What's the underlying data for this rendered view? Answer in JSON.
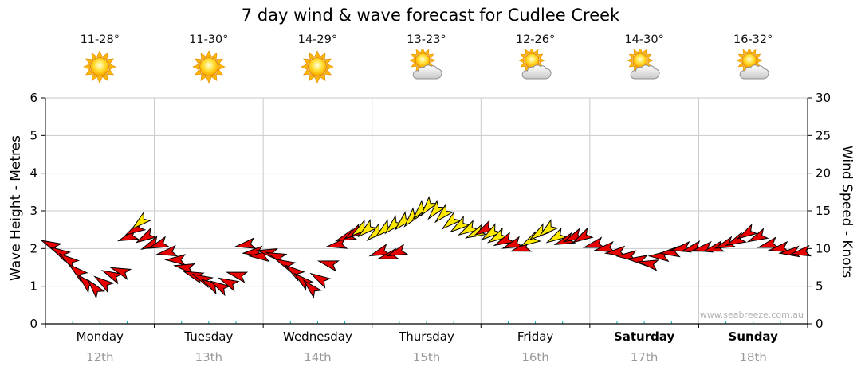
{
  "title": "7 day wind & wave forecast for Cudlee Creek",
  "watermark": "www.seabreeze.com.au",
  "chart_data": {
    "type": "wind-arrow-timeseries",
    "title": "7 day wind & wave forecast for Cudlee Creek",
    "left_axis": {
      "label": "Wave Height - Metres",
      "min": 0,
      "max": 6,
      "step": 1
    },
    "right_axis": {
      "label": "Wind Speed - Knots",
      "min": 0,
      "max": 30,
      "step": 5
    },
    "colors": {
      "red": "#e60000",
      "yellow": "#ffe800",
      "grid": "#c9c9c9",
      "axis": "#000000",
      "minor_tick": "#00b2b2"
    },
    "days": [
      {
        "name": "Monday",
        "date": "12th",
        "temp": "11-28°",
        "icon": "sunny",
        "bold": false
      },
      {
        "name": "Tuesday",
        "date": "13th",
        "temp": "11-30°",
        "icon": "sunny",
        "bold": false
      },
      {
        "name": "Wednesday",
        "date": "14th",
        "temp": "14-29°",
        "icon": "sunny",
        "bold": false
      },
      {
        "name": "Thursday",
        "date": "15th",
        "temp": "13-23°",
        "icon": "partly-cloudy",
        "bold": false
      },
      {
        "name": "Friday",
        "date": "16th",
        "temp": "12-26°",
        "icon": "partly-cloudy",
        "bold": false
      },
      {
        "name": "Saturday",
        "date": "17th",
        "temp": "14-30°",
        "icon": "partly-cloudy",
        "bold": true
      },
      {
        "name": "Sunday",
        "date": "18th",
        "temp": "16-32°",
        "icon": "partly-cloudy",
        "bold": true
      }
    ],
    "points_format": [
      "day_fraction",
      "wind_speed_knots",
      "arrow_rotation_deg",
      "color(r=red,y=yellow)"
    ],
    "points": [
      [
        0.05,
        10.5,
        205,
        "r"
      ],
      [
        0.13,
        9.5,
        210,
        "r"
      ],
      [
        0.21,
        8.5,
        215,
        "r"
      ],
      [
        0.29,
        7,
        220,
        "r"
      ],
      [
        0.37,
        5.5,
        225,
        "r"
      ],
      [
        0.45,
        4.8,
        230,
        "r"
      ],
      [
        0.53,
        5.5,
        215,
        "r"
      ],
      [
        0.61,
        6.5,
        205,
        "r"
      ],
      [
        0.69,
        7,
        200,
        "r"
      ],
      [
        0.76,
        11.5,
        160,
        "r"
      ],
      [
        0.82,
        12.5,
        150,
        "r"
      ],
      [
        0.87,
        13.5,
        140,
        "y"
      ],
      [
        0.92,
        11.5,
        150,
        "r"
      ],
      [
        0.97,
        10.5,
        155,
        "r"
      ],
      [
        1.04,
        10.5,
        160,
        "r"
      ],
      [
        1.12,
        9.5,
        170,
        "r"
      ],
      [
        1.2,
        8.5,
        180,
        "r"
      ],
      [
        1.28,
        7.5,
        190,
        "r"
      ],
      [
        1.36,
        6.5,
        200,
        "r"
      ],
      [
        1.44,
        6,
        205,
        "r"
      ],
      [
        1.52,
        5.2,
        210,
        "r"
      ],
      [
        1.6,
        5,
        210,
        "r"
      ],
      [
        1.68,
        5.5,
        205,
        "r"
      ],
      [
        1.76,
        6.5,
        195,
        "r"
      ],
      [
        1.84,
        10.5,
        170,
        "r"
      ],
      [
        1.91,
        9.5,
        175,
        "r"
      ],
      [
        1.97,
        9,
        180,
        "r"
      ],
      [
        2.04,
        9.5,
        190,
        "r"
      ],
      [
        2.12,
        9,
        200,
        "r"
      ],
      [
        2.2,
        8,
        205,
        "r"
      ],
      [
        2.28,
        7,
        215,
        "r"
      ],
      [
        2.36,
        5.8,
        220,
        "r"
      ],
      [
        2.44,
        4.8,
        225,
        "r"
      ],
      [
        2.52,
        6,
        210,
        "r"
      ],
      [
        2.6,
        8,
        195,
        "r"
      ],
      [
        2.68,
        10.5,
        170,
        "r"
      ],
      [
        2.76,
        11.5,
        160,
        "r"
      ],
      [
        2.83,
        12,
        150,
        "r"
      ],
      [
        2.89,
        12.5,
        145,
        "y"
      ],
      [
        2.95,
        12.5,
        140,
        "y"
      ],
      [
        3.03,
        12,
        140,
        "y"
      ],
      [
        3.07,
        9.5,
        160,
        "r"
      ],
      [
        3.11,
        12.5,
        140,
        "y"
      ],
      [
        3.15,
        9,
        165,
        "r"
      ],
      [
        3.19,
        13,
        135,
        "y"
      ],
      [
        3.23,
        9.5,
        160,
        "r"
      ],
      [
        3.28,
        13.5,
        135,
        "y"
      ],
      [
        3.36,
        14,
        130,
        "y"
      ],
      [
        3.44,
        15,
        130,
        "y"
      ],
      [
        3.51,
        15.5,
        128,
        "y"
      ],
      [
        3.58,
        15,
        130,
        "y"
      ],
      [
        3.65,
        14.5,
        135,
        "y"
      ],
      [
        3.72,
        13.5,
        140,
        "y"
      ],
      [
        3.8,
        13,
        145,
        "y"
      ],
      [
        3.88,
        12.5,
        150,
        "y"
      ],
      [
        3.95,
        12,
        155,
        "y"
      ],
      [
        4.03,
        12.5,
        150,
        "r"
      ],
      [
        4.09,
        12,
        145,
        "y"
      ],
      [
        4.15,
        11.5,
        150,
        "y"
      ],
      [
        4.21,
        11,
        155,
        "r"
      ],
      [
        4.29,
        10.5,
        160,
        "r"
      ],
      [
        4.37,
        10,
        165,
        "r"
      ],
      [
        4.45,
        11,
        150,
        "y"
      ],
      [
        4.53,
        12,
        145,
        "y"
      ],
      [
        4.61,
        12.5,
        140,
        "y"
      ],
      [
        4.69,
        11.5,
        150,
        "y"
      ],
      [
        4.77,
        11,
        160,
        "r"
      ],
      [
        4.85,
        11.5,
        155,
        "r"
      ],
      [
        4.93,
        11.5,
        150,
        "r"
      ],
      [
        5.04,
        10.5,
        165,
        "r"
      ],
      [
        5.14,
        10,
        170,
        "r"
      ],
      [
        5.24,
        9.5,
        175,
        "r"
      ],
      [
        5.34,
        9,
        180,
        "r"
      ],
      [
        5.44,
        8.5,
        185,
        "r"
      ],
      [
        5.54,
        8,
        190,
        "r"
      ],
      [
        5.64,
        9,
        180,
        "r"
      ],
      [
        5.74,
        9.5,
        175,
        "r"
      ],
      [
        5.84,
        10,
        170,
        "r"
      ],
      [
        5.94,
        10,
        165,
        "r"
      ],
      [
        6.04,
        10,
        170,
        "r"
      ],
      [
        6.14,
        10,
        165,
        "r"
      ],
      [
        6.24,
        10.5,
        160,
        "r"
      ],
      [
        6.34,
        11,
        155,
        "r"
      ],
      [
        6.44,
        12,
        150,
        "r"
      ],
      [
        6.54,
        11.5,
        155,
        "r"
      ],
      [
        6.64,
        10.5,
        165,
        "r"
      ],
      [
        6.74,
        10,
        170,
        "r"
      ],
      [
        6.84,
        9.5,
        175,
        "r"
      ],
      [
        6.94,
        9.5,
        170,
        "r"
      ]
    ]
  }
}
